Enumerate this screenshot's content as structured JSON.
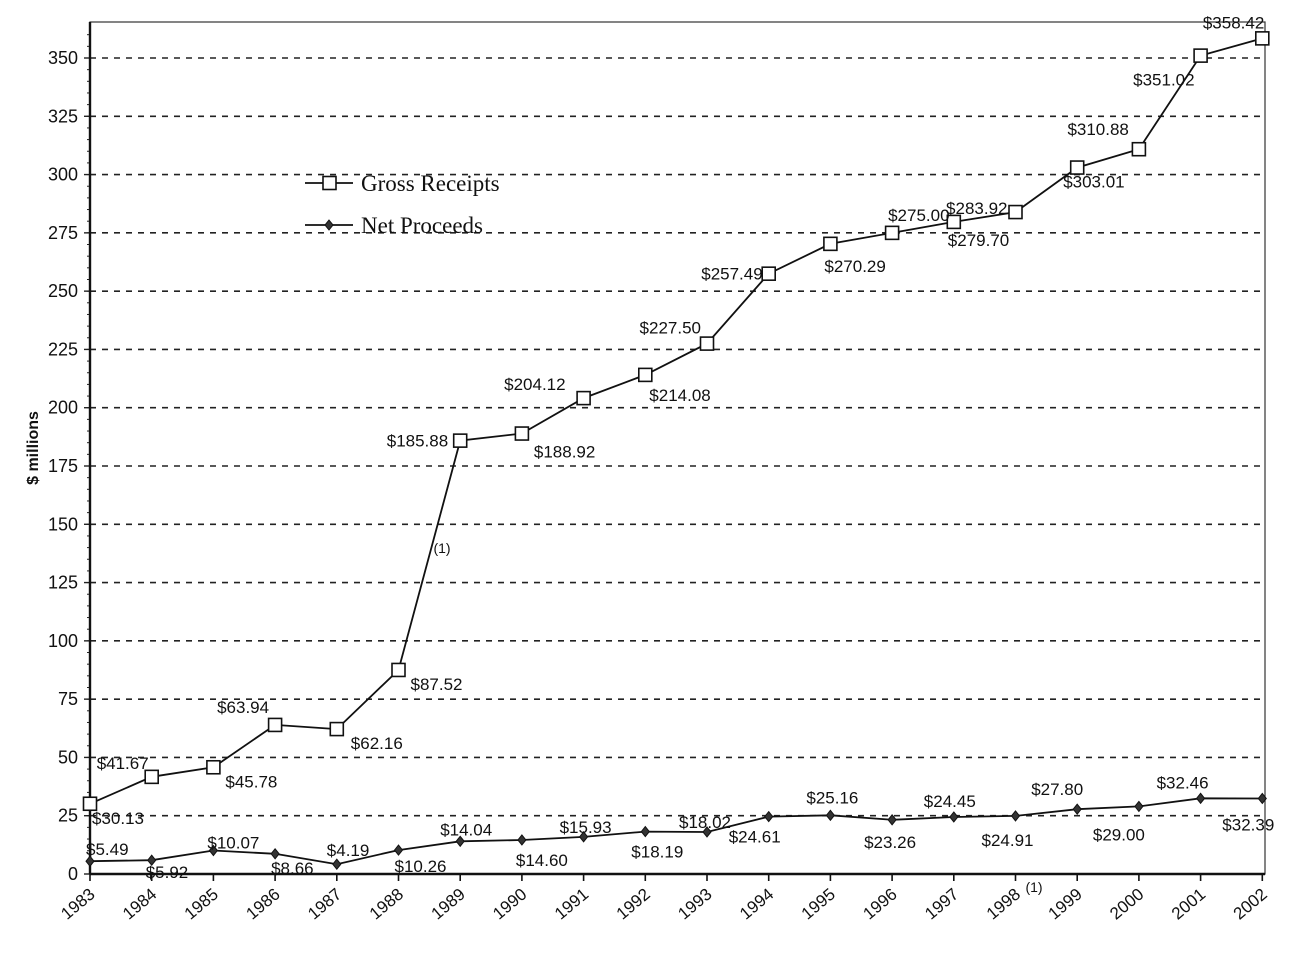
{
  "chart_data": {
    "type": "line",
    "title": "",
    "xlabel": "",
    "ylabel": "$ millions",
    "ylim": [
      0,
      365
    ],
    "yticks": [
      0,
      25,
      50,
      75,
      100,
      125,
      150,
      175,
      200,
      225,
      250,
      275,
      300,
      325,
      350
    ],
    "grid": "horizontal dashed",
    "legend_position": "upper-left",
    "categories": [
      "1983",
      "1984",
      "1985",
      "1986",
      "1987",
      "1988",
      "1989",
      "1990",
      "1991",
      "1992",
      "1993",
      "1994",
      "1995",
      "1996",
      "1997",
      "1998",
      "1999",
      "2000",
      "2001",
      "2002"
    ],
    "series": [
      {
        "name": "Gross Receipts",
        "marker": "square",
        "values": [
          30.13,
          41.67,
          45.78,
          63.94,
          62.16,
          87.52,
          185.88,
          188.92,
          204.12,
          214.08,
          227.5,
          257.49,
          270.29,
          275.0,
          279.7,
          283.92,
          303.01,
          310.88,
          351.02,
          358.42
        ],
        "labels": [
          "$30.13",
          "$41.67",
          "$45.78",
          "$63.94",
          "$62.16",
          "$87.52",
          "$185.88",
          "$188.92",
          "$204.12",
          "$214.08",
          "$227.50",
          "$257.49",
          "$270.29",
          "$275.00",
          "$279.70",
          "$283.92",
          "$303.01",
          "$310.88",
          "$351.02",
          "$358.42"
        ]
      },
      {
        "name": "Net Proceeds",
        "marker": "diamond",
        "values": [
          5.49,
          5.92,
          10.07,
          8.66,
          4.19,
          10.26,
          14.04,
          14.6,
          15.93,
          18.19,
          18.02,
          24.61,
          25.16,
          23.26,
          24.45,
          24.91,
          27.8,
          29.0,
          32.46,
          32.39
        ],
        "labels": [
          "$5.49",
          "$5.92",
          "$10.07",
          "$8.66",
          "$4.19",
          "$10.26",
          "$14.04",
          "$14.60",
          "$15.93",
          "$18.19",
          "$18.02",
          "$24.61",
          "$25.16",
          "$23.26",
          "$24.45",
          "$24.91",
          "$27.80",
          "$29.00",
          "$32.46",
          "$32.39"
        ]
      }
    ],
    "annotations": [
      {
        "text": "(1)",
        "near": "1988-1989 Gross Receipts jump"
      },
      {
        "text": "(1)",
        "near": "below 1998-1999 x-axis"
      }
    ]
  }
}
